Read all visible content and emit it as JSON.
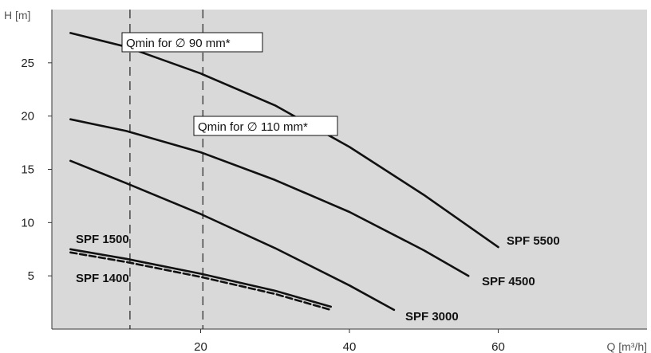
{
  "chart_data": {
    "type": "line",
    "xlabel": "Q [m³/h]",
    "ylabel": "H [m]",
    "xlim": [
      0,
      80
    ],
    "ylim": [
      0,
      30
    ],
    "xticks": [
      20,
      40,
      60
    ],
    "yticks": [
      5,
      10,
      15,
      20,
      25
    ],
    "grid": false,
    "background": "#d9d9d9",
    "series": [
      {
        "name": "SPF 5500",
        "style": "solid",
        "x": [
          2.5,
          10,
          20,
          30,
          40,
          50,
          60
        ],
        "y": [
          27.8,
          26.5,
          24.0,
          21.0,
          17.1,
          12.6,
          7.7
        ]
      },
      {
        "name": "SPF 4500",
        "style": "solid",
        "x": [
          2.5,
          10,
          20,
          30,
          40,
          50,
          56
        ],
        "y": [
          19.7,
          18.6,
          16.6,
          14.0,
          11.0,
          7.4,
          5.0
        ]
      },
      {
        "name": "SPF 3000",
        "style": "solid",
        "x": [
          2.5,
          10,
          20,
          30,
          40,
          46
        ],
        "y": [
          15.8,
          13.7,
          10.8,
          7.6,
          4.1,
          1.8
        ]
      },
      {
        "name": "SPF 1500",
        "style": "solid",
        "x": [
          2.5,
          10,
          20,
          30,
          37.5
        ],
        "y": [
          7.5,
          6.6,
          5.2,
          3.6,
          2.1
        ]
      },
      {
        "name": "SPF 1400",
        "style": "dashed",
        "x": [
          2.5,
          10,
          20,
          30,
          37.5
        ],
        "y": [
          7.2,
          6.3,
          4.9,
          3.3,
          1.8
        ]
      }
    ],
    "reference_lines": [
      {
        "x": 10.5,
        "label": "Qmin for ∅ 90 mm*"
      },
      {
        "x": 20.3,
        "label": "Qmin for ∅ 110 mm*"
      }
    ]
  }
}
